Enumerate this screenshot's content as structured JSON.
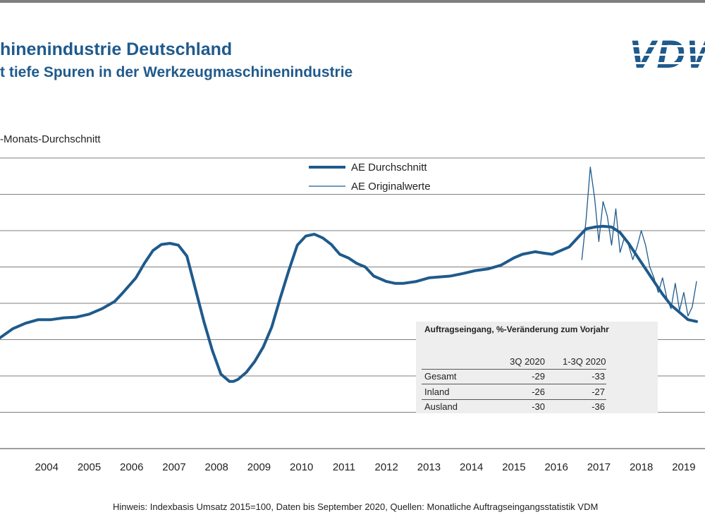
{
  "header": {
    "title": "hinenindustrie Deutschland",
    "subtitle": "t tiefe Spuren in der Werkzeugmaschinenindustrie",
    "logo_text": "VDW",
    "y_axis_label": "-Monats-Durchschnitt"
  },
  "colors": {
    "series": "#1f5a8c",
    "grid": "#7f7f7f",
    "table_bg": "#eeeeee"
  },
  "footnote": "Hinweis: Indexbasis Umsatz 2015=100, Daten bis September 2020, Quellen: Monatliche Auftragseingangsstatistik VDM",
  "table": {
    "title": "Auftragseingang, %-Veränderung zum Vorjahr",
    "columns": [
      "3Q 2020",
      "1-3Q 2020"
    ],
    "rows": [
      {
        "label": "Gesamt",
        "values": [
          "-29",
          "-33"
        ]
      },
      {
        "label": "Inland",
        "values": [
          "-26",
          "-27"
        ]
      },
      {
        "label": "Ausland",
        "values": [
          "-30",
          "-36"
        ]
      }
    ]
  },
  "chart_data": {
    "type": "line",
    "xlim": [
      2003.4,
      2020.0
    ],
    "ylim": [
      0,
      8
    ],
    "grid": true,
    "legend_position": "top-center",
    "x_tick_labels": [
      "2004",
      "2005",
      "2006",
      "2007",
      "2008",
      "2009",
      "2010",
      "2011",
      "2012",
      "2013",
      "2014",
      "2015",
      "2016",
      "2017",
      "2018",
      "2019"
    ],
    "series": [
      {
        "name": "AE Durchschnitt",
        "style": "thick",
        "x": [
          2003.4,
          2003.7,
          2004.0,
          2004.3,
          2004.6,
          2004.9,
          2005.2,
          2005.5,
          2005.8,
          2006.1,
          2006.3,
          2006.6,
          2006.8,
          2007.0,
          2007.2,
          2007.4,
          2007.6,
          2007.8,
          2008.0,
          2008.2,
          2008.4,
          2008.6,
          2008.8,
          2008.9,
          2009.0,
          2009.2,
          2009.4,
          2009.6,
          2009.8,
          2010.0,
          2010.2,
          2010.4,
          2010.6,
          2010.8,
          2011.0,
          2011.2,
          2011.4,
          2011.6,
          2011.8,
          2012.0,
          2012.2,
          2012.5,
          2012.7,
          2012.9,
          2013.2,
          2013.5,
          2013.7,
          2014.0,
          2014.3,
          2014.6,
          2014.9,
          2015.2,
          2015.5,
          2015.7,
          2016.0,
          2016.2,
          2016.4,
          2016.6,
          2016.8,
          2017.0,
          2017.2,
          2017.4,
          2017.6,
          2017.8,
          2018.0,
          2018.2,
          2018.4,
          2018.6,
          2018.8,
          2019.0,
          2019.2,
          2019.4,
          2019.6,
          2019.8
        ],
        "y": [
          3.05,
          3.3,
          3.45,
          3.55,
          3.55,
          3.6,
          3.62,
          3.7,
          3.85,
          4.05,
          4.3,
          4.7,
          5.1,
          5.45,
          5.62,
          5.65,
          5.6,
          5.3,
          4.4,
          3.5,
          2.7,
          2.05,
          1.85,
          1.85,
          1.9,
          2.1,
          2.4,
          2.8,
          3.35,
          4.15,
          4.9,
          5.6,
          5.85,
          5.9,
          5.8,
          5.62,
          5.35,
          5.25,
          5.1,
          5.0,
          4.75,
          4.6,
          4.55,
          4.55,
          4.6,
          4.7,
          4.72,
          4.75,
          4.82,
          4.9,
          4.95,
          5.05,
          5.25,
          5.35,
          5.42,
          5.38,
          5.35,
          5.45,
          5.55,
          5.8,
          6.05,
          6.1,
          6.12,
          6.1,
          5.95,
          5.65,
          5.3,
          4.95,
          4.6,
          4.25,
          3.95,
          3.75,
          3.55,
          3.5
        ]
      },
      {
        "name": "AE Originalwerte",
        "style": "thin",
        "x": [
          2017.1,
          2017.2,
          2017.3,
          2017.4,
          2017.5,
          2017.6,
          2017.7,
          2017.8,
          2017.9,
          2018.0,
          2018.1,
          2018.2,
          2018.3,
          2018.4,
          2018.5,
          2018.6,
          2018.7,
          2018.8,
          2018.9,
          2019.0,
          2019.1,
          2019.2,
          2019.3,
          2019.4,
          2019.5,
          2019.6,
          2019.7,
          2019.8
        ],
        "y": [
          5.2,
          6.3,
          7.75,
          6.9,
          5.7,
          6.8,
          6.4,
          5.6,
          6.6,
          5.4,
          5.8,
          5.6,
          5.2,
          5.55,
          6.0,
          5.6,
          5.0,
          4.7,
          4.3,
          4.7,
          4.15,
          3.85,
          4.55,
          3.8,
          4.3,
          3.65,
          3.9,
          4.6
        ]
      }
    ]
  }
}
